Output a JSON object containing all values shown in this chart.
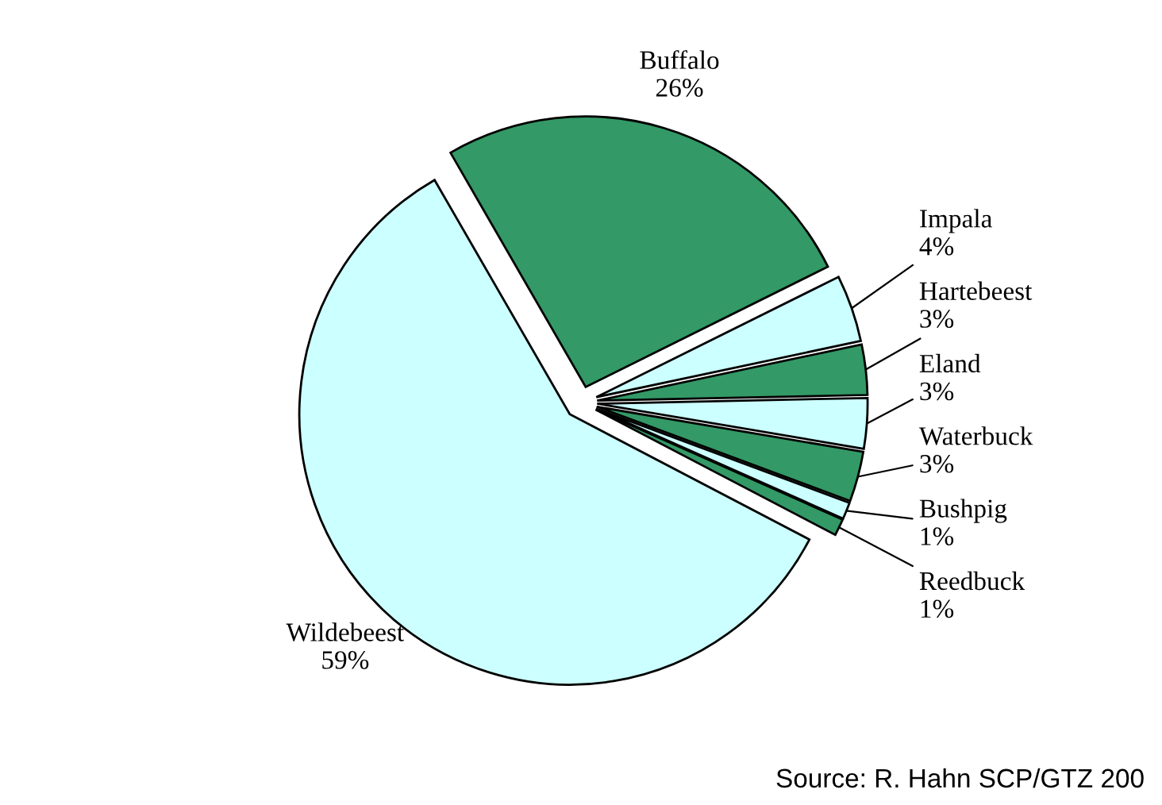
{
  "chart_data": {
    "type": "pie",
    "categories": [
      "Buffalo",
      "Impala",
      "Hartebeest",
      "Eland",
      "Waterbuck",
      "Bushpig",
      "Reedbuck",
      "Wildebeest"
    ],
    "values": [
      26,
      4,
      3,
      3,
      3,
      1,
      1,
      59
    ],
    "value_labels": [
      "26%",
      "4%",
      "3%",
      "3%",
      "3%",
      "1%",
      "1%",
      "59%"
    ],
    "colors": [
      "#339966",
      "#ccffff",
      "#339966",
      "#ccffff",
      "#339966",
      "#ccffff",
      "#339966",
      "#ccffff"
    ],
    "annotations": [
      "Source: R. Hahn SCP/GTZ 200"
    ],
    "legend": false
  }
}
